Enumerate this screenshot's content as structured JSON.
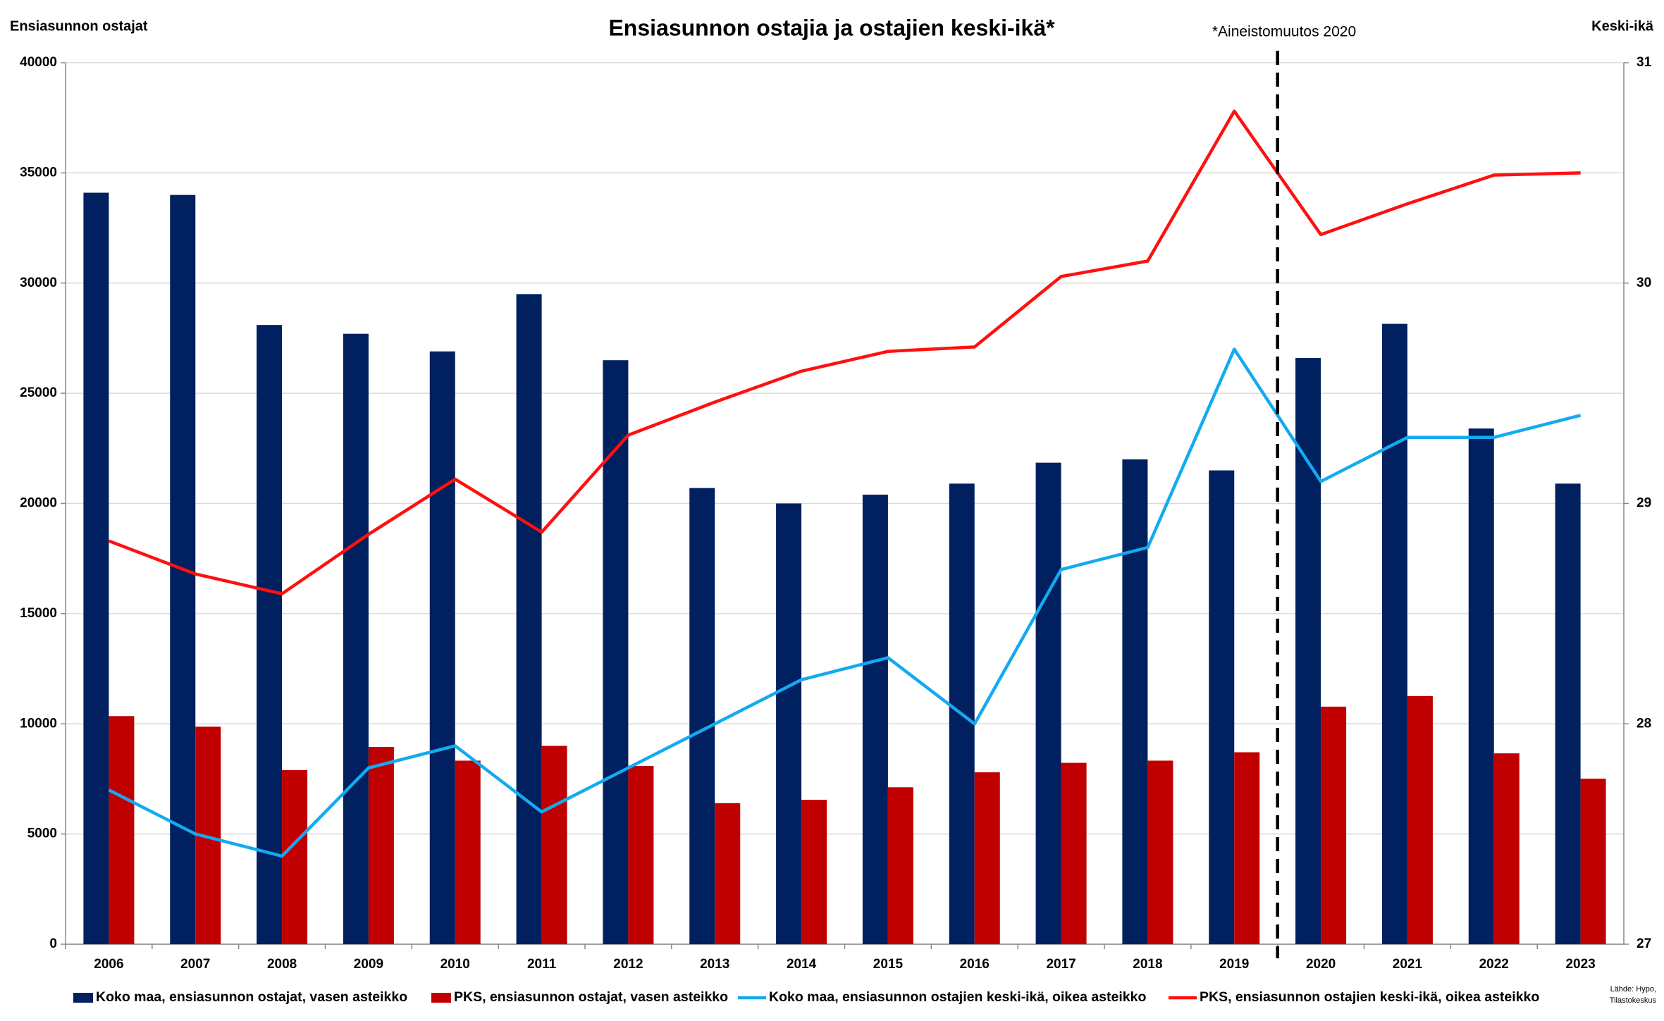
{
  "chart_data": {
    "type": "bar",
    "title": "Ensiasunnon ostajia ja ostajien keski-ikä*",
    "y_label": "Ensiasunnon ostajat",
    "y2_label": "Keski-ikä",
    "annotation": "*Aineistomuutos 2020",
    "source": [
      "Lähde: Hypo,",
      "Tilastokeskus"
    ],
    "categories": [
      "2006",
      "2007",
      "2008",
      "2009",
      "2010",
      "2011",
      "2012",
      "2013",
      "2014",
      "2015",
      "2016",
      "2017",
      "2018",
      "2019",
      "2020",
      "2021",
      "2022",
      "2023"
    ],
    "ylim": [
      0,
      40000
    ],
    "yticks": [
      0,
      5000,
      10000,
      15000,
      20000,
      25000,
      30000,
      35000,
      40000
    ],
    "y2lim": [
      27,
      31
    ],
    "y2ticks": [
      27,
      28,
      29,
      30,
      31
    ],
    "grid": true,
    "legend": "bottom",
    "series": [
      {
        "name": "Koko maa, ensiasunnon ostajat, vasen asteikko",
        "type": "bar",
        "color": "#002060",
        "values": [
          34100,
          34000,
          28100,
          27700,
          26900,
          29500,
          26500,
          20700,
          20000,
          20400,
          20900,
          21850,
          22000,
          21500,
          26600,
          28150,
          23400,
          20900
        ]
      },
      {
        "name": "PKS, ensiasunnon ostajat, vasen asteikko",
        "type": "bar",
        "color": "#c00000",
        "values": [
          10350,
          9870,
          7900,
          8950,
          8330,
          9000,
          8090,
          6400,
          6550,
          7120,
          7800,
          8230,
          8330,
          8710,
          10780,
          11260,
          8660,
          7510
        ]
      },
      {
        "name": "Koko maa, ensiasunnon ostajien keski-ikä, oikea asteikko",
        "type": "line",
        "axis": "y2",
        "color": "#14aaf0",
        "values": [
          27.7,
          27.5,
          27.4,
          27.8,
          27.9,
          27.6,
          27.8,
          28.0,
          28.2,
          28.3,
          28.0,
          28.7,
          28.8,
          29.7,
          29.1,
          29.3,
          29.3,
          29.4
        ]
      },
      {
        "name": "PKS, ensiasunnon ostajien keski-ikä, oikea asteikko",
        "type": "line",
        "axis": "y2",
        "color": "#ff1010",
        "values": [
          28.83,
          28.68,
          28.59,
          28.86,
          29.11,
          28.87,
          29.31,
          29.46,
          29.6,
          29.69,
          29.71,
          30.03,
          30.1,
          30.78,
          30.22,
          30.36,
          30.49,
          30.5
        ]
      }
    ]
  }
}
